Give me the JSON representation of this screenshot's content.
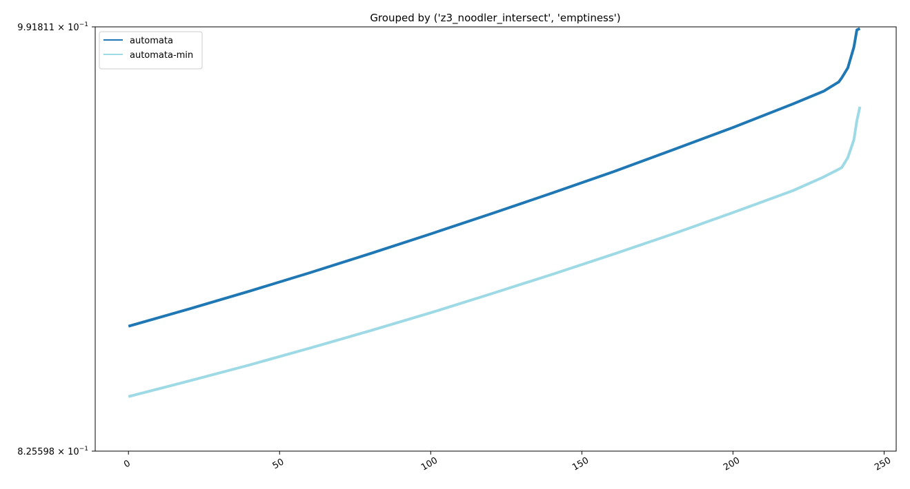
{
  "chart_data": {
    "type": "line",
    "title": "Grouped by ('z3_noodler_intersect', 'emptiness')",
    "xlabel": "",
    "ylabel": "",
    "xlim": [
      -11,
      254
    ],
    "ylim": [
      0.825598,
      0.991811
    ],
    "yscale": "log",
    "grid": false,
    "legend": "top-left",
    "x_ticks": [
      0,
      50,
      100,
      150,
      200,
      250
    ],
    "x_tick_labels": [
      "0",
      "50",
      "100",
      "150",
      "200",
      "250"
    ],
    "y_ticks": [
      0.825598,
      0.991811
    ],
    "y_tick_labels": [
      {
        "mantissa": "8.25598",
        "exponent": "−1"
      },
      {
        "mantissa": "9.91811",
        "exponent": "−1"
      }
    ],
    "series": [
      {
        "name": "automata",
        "color": "#1f77b4",
        "x": [
          0,
          20,
          40,
          60,
          80,
          100,
          120,
          140,
          160,
          180,
          200,
          220,
          230,
          235,
          236,
          238,
          240,
          241,
          242
        ],
        "y": [
          0.8714,
          0.8779,
          0.8847,
          0.8918,
          0.8992,
          0.9069,
          0.9148,
          0.923,
          0.9314,
          0.9404,
          0.9496,
          0.9594,
          0.9646,
          0.9685,
          0.9702,
          0.9744,
          0.9832,
          0.9905,
          0.9911
        ]
      },
      {
        "name": "automata-min",
        "color": "#9edae5",
        "x": [
          0,
          20,
          40,
          60,
          80,
          100,
          120,
          140,
          160,
          180,
          200,
          220,
          230,
          235,
          236,
          238,
          240,
          241,
          242
        ],
        "y": [
          0.8453,
          0.851,
          0.8569,
          0.8632,
          0.8697,
          0.8765,
          0.8837,
          0.8911,
          0.8988,
          0.9068,
          0.9153,
          0.9241,
          0.9295,
          0.9326,
          0.9333,
          0.9373,
          0.9446,
          0.9524,
          0.9581
        ]
      }
    ]
  }
}
